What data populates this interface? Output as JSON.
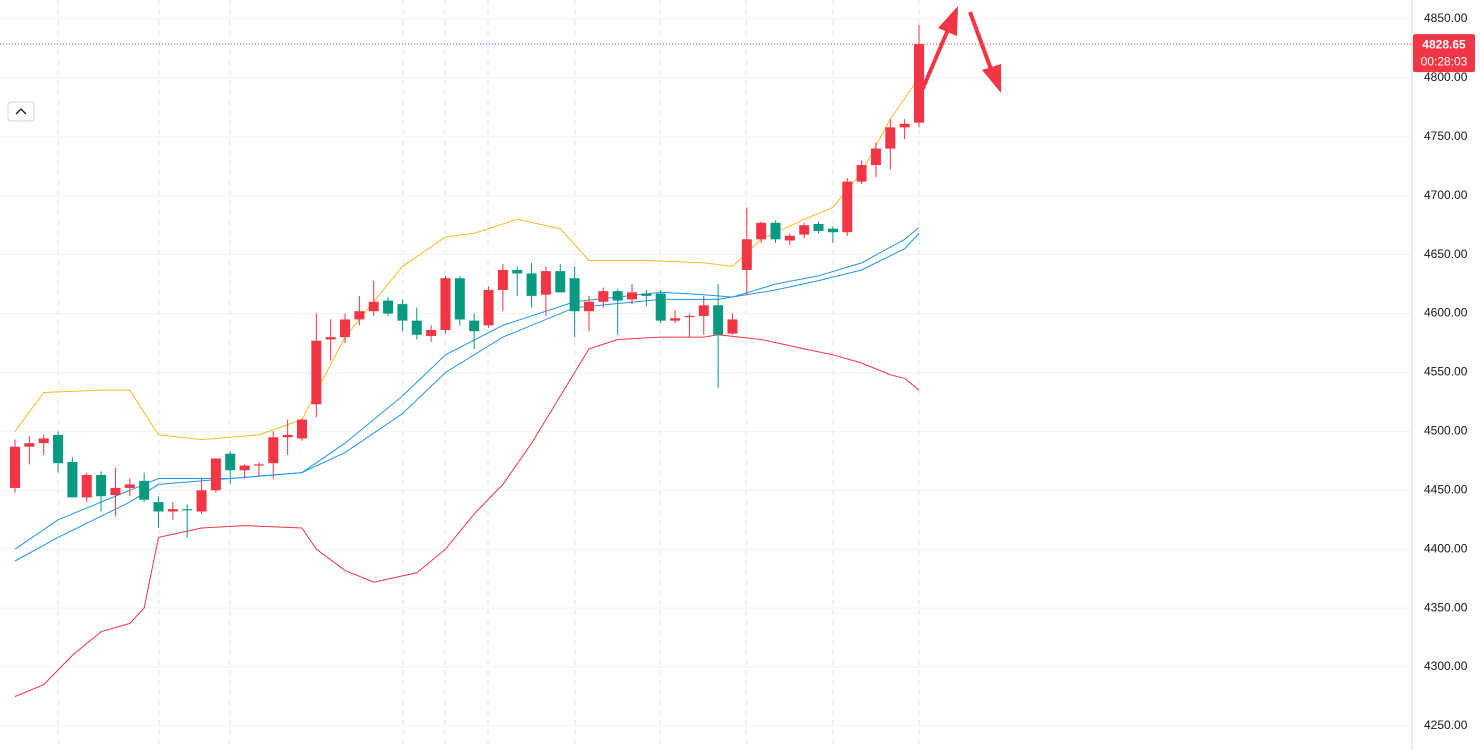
{
  "chart_data": {
    "type": "candlestick",
    "open": [
      4452,
      4487,
      4490,
      4497,
      4474,
      4444,
      4463,
      4446,
      4452,
      4458,
      4440,
      4432,
      4434,
      4432,
      4450,
      4481,
      4467,
      4471,
      4473,
      4495,
      4494,
      4523,
      4578,
      4580,
      4595,
      4602,
      4611,
      4608,
      4594,
      4581,
      4586,
      4630,
      4594,
      4590,
      4620,
      4637,
      4634,
      4616,
      4636,
      4630,
      4602,
      4610,
      4619,
      4612,
      4617,
      4617,
      4594,
      4597,
      4598,
      4607,
      4583,
      4637,
      4663,
      4677,
      4662,
      4667,
      4676,
      4672,
      4669,
      4712,
      4726,
      4740,
      4758,
      4762
    ],
    "high": [
      4493,
      4496,
      4497,
      4500,
      4478,
      4465,
      4466,
      4469,
      4460,
      4465,
      4445,
      4440,
      4438,
      4460,
      4477,
      4483,
      4472,
      4474,
      4500,
      4510,
      4511,
      4600,
      4595,
      4600,
      4615,
      4628,
      4614,
      4612,
      4605,
      4590,
      4632,
      4632,
      4600,
      4623,
      4642,
      4640,
      4643,
      4640,
      4642,
      4640,
      4615,
      4622,
      4621,
      4625,
      4620,
      4620,
      4603,
      4600,
      4615,
      4625,
      4600,
      4690,
      4678,
      4679,
      4668,
      4677,
      4678,
      4674,
      4715,
      4730,
      4745,
      4765,
      4765,
      4845
    ],
    "low": [
      4448,
      4472,
      4480,
      4465,
      4444,
      4440,
      4432,
      4428,
      4445,
      4440,
      4418,
      4425,
      4410,
      4430,
      4448,
      4455,
      4460,
      4462,
      4460,
      4480,
      4492,
      4512,
      4560,
      4575,
      4590,
      4598,
      4598,
      4585,
      4578,
      4576,
      4583,
      4590,
      4570,
      4588,
      4602,
      4615,
      4605,
      4598,
      4620,
      4580,
      4585,
      4605,
      4582,
      4608,
      4606,
      4592,
      4592,
      4580,
      4582,
      4537,
      4582,
      4616,
      4660,
      4660,
      4658,
      4664,
      4668,
      4660,
      4666,
      4710,
      4716,
      4722,
      4748,
      4758
    ],
    "close": [
      4487,
      4490,
      4494,
      4473,
      4444,
      4463,
      4445,
      4452,
      4455,
      4442,
      4432,
      4434,
      4433,
      4450,
      4477,
      4467,
      4471,
      4472,
      4495,
      4497,
      4510,
      4577,
      4580,
      4595,
      4602,
      4610,
      4600,
      4594,
      4582,
      4586,
      4630,
      4595,
      4585,
      4620,
      4637,
      4634,
      4615,
      4636,
      4618,
      4602,
      4610,
      4619,
      4611,
      4618,
      4615,
      4594,
      4596,
      4598,
      4607,
      4582,
      4595,
      4663,
      4677,
      4663,
      4666,
      4675,
      4670,
      4669,
      4712,
      4726,
      4740,
      4758,
      4761,
      4828.65
    ],
    "up_color": "#f23645",
    "down_color": "#089981",
    "lines": [
      {
        "color": "#f7b924",
        "x": [
          0,
          2,
          6,
          8,
          10,
          13,
          17,
          20,
          23,
          27,
          30,
          32,
          35,
          38,
          40,
          44,
          48,
          50,
          52,
          55,
          57,
          59,
          61,
          63
        ],
        "values": [
          4500,
          4533,
          4535,
          4535,
          4497,
          4493,
          4497,
          4510,
          4580,
          4640,
          4665,
          4668,
          4680,
          4672,
          4645,
          4645,
          4643,
          4640,
          4663,
          4680,
          4690,
          4720,
          4765,
          4800
        ]
      },
      {
        "color": "#f23645",
        "x": [
          0,
          2,
          4,
          6,
          8,
          9,
          10,
          13,
          16,
          20,
          21,
          23,
          25,
          28,
          30,
          32,
          34,
          36,
          38,
          40,
          42,
          45,
          48,
          49,
          52,
          55,
          57,
          59,
          61,
          62,
          63
        ],
        "values": [
          4275,
          4285,
          4310,
          4330,
          4337,
          4350,
          4410,
          4418,
          4420,
          4418,
          4400,
          4382,
          4372,
          4380,
          4400,
          4430,
          4455,
          4490,
          4530,
          4570,
          4578,
          4580,
          4580,
          4582,
          4578,
          4570,
          4565,
          4558,
          4548,
          4545,
          4535
        ]
      },
      {
        "color": "#2196f3",
        "x": [
          0,
          3,
          8,
          10,
          15,
          20,
          23,
          27,
          30,
          34,
          39,
          45,
          48,
          50,
          53,
          56,
          59,
          62,
          63
        ],
        "values": [
          4400,
          4425,
          4450,
          4460,
          4460,
          4465,
          4490,
          4530,
          4565,
          4590,
          4610,
          4618,
          4616,
          4614,
          4625,
          4632,
          4643,
          4663,
          4673
        ]
      },
      {
        "color": "#2196f3",
        "x": [
          0,
          3,
          8,
          10,
          15,
          20,
          23,
          27,
          30,
          34,
          39,
          45,
          49,
          53,
          56,
          59,
          62,
          63
        ],
        "values": [
          4390,
          4410,
          4440,
          4455,
          4460,
          4465,
          4482,
          4515,
          4550,
          4580,
          4605,
          4612,
          4612,
          4620,
          4628,
          4637,
          4655,
          4668
        ]
      }
    ],
    "last_price": 4828.65,
    "countdown": "00:28:03",
    "ylim": [
      4229.6,
      4866.1
    ],
    "yticks": [
      {
        "value": 4250,
        "label": "4250.00"
      },
      {
        "value": 4300,
        "label": "4300.00"
      },
      {
        "value": 4350,
        "label": "4350.00"
      },
      {
        "value": 4400,
        "label": "4400.00"
      },
      {
        "value": 4450,
        "label": "4450.00"
      },
      {
        "value": 4500,
        "label": "4500.00"
      },
      {
        "value": 4550,
        "label": "4550.00"
      },
      {
        "value": 4600,
        "label": "4600.00"
      },
      {
        "value": 4650,
        "label": "4650.00"
      },
      {
        "value": 4700,
        "label": "4700.00"
      },
      {
        "value": 4750,
        "label": "4750.00"
      },
      {
        "value": 4800,
        "label": "4800.00"
      },
      {
        "value": 4850,
        "label": "4850.00"
      }
    ],
    "grid": true
  }
}
